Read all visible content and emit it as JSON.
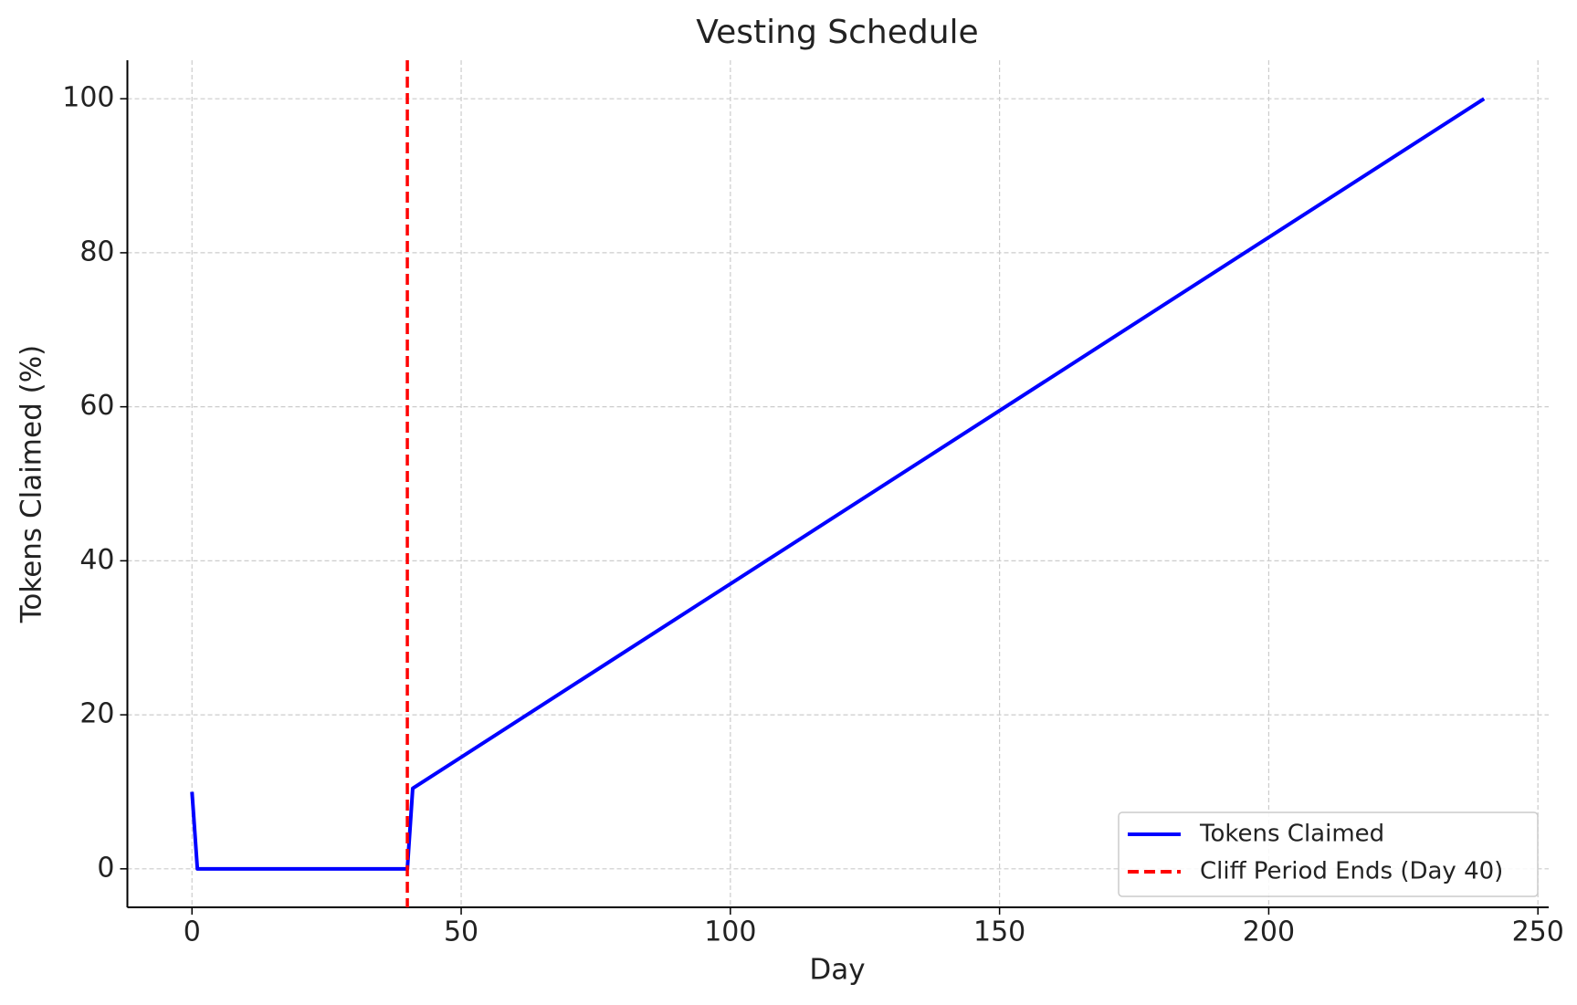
{
  "chart_data": {
    "type": "line",
    "title": "Vesting Schedule",
    "xlabel": "Day",
    "ylabel": "Tokens Claimed (%)",
    "series": [
      {
        "name": "Tokens Claimed",
        "color": "#0000ff",
        "x": [
          0,
          1,
          40,
          41,
          240
        ],
        "values": [
          10,
          0,
          0,
          10.45,
          100
        ]
      }
    ],
    "vline": {
      "name": "Cliff Period Ends (Day 40)",
      "color": "#ff0000",
      "x": 40,
      "style": "dashed"
    },
    "xlim": [
      -12,
      252
    ],
    "ylim": [
      -5,
      105
    ],
    "xticks": [
      0,
      50,
      100,
      150,
      200,
      250
    ],
    "yticks": [
      0,
      20,
      40,
      60,
      80,
      100
    ],
    "grid": true,
    "legend": "lower right"
  }
}
